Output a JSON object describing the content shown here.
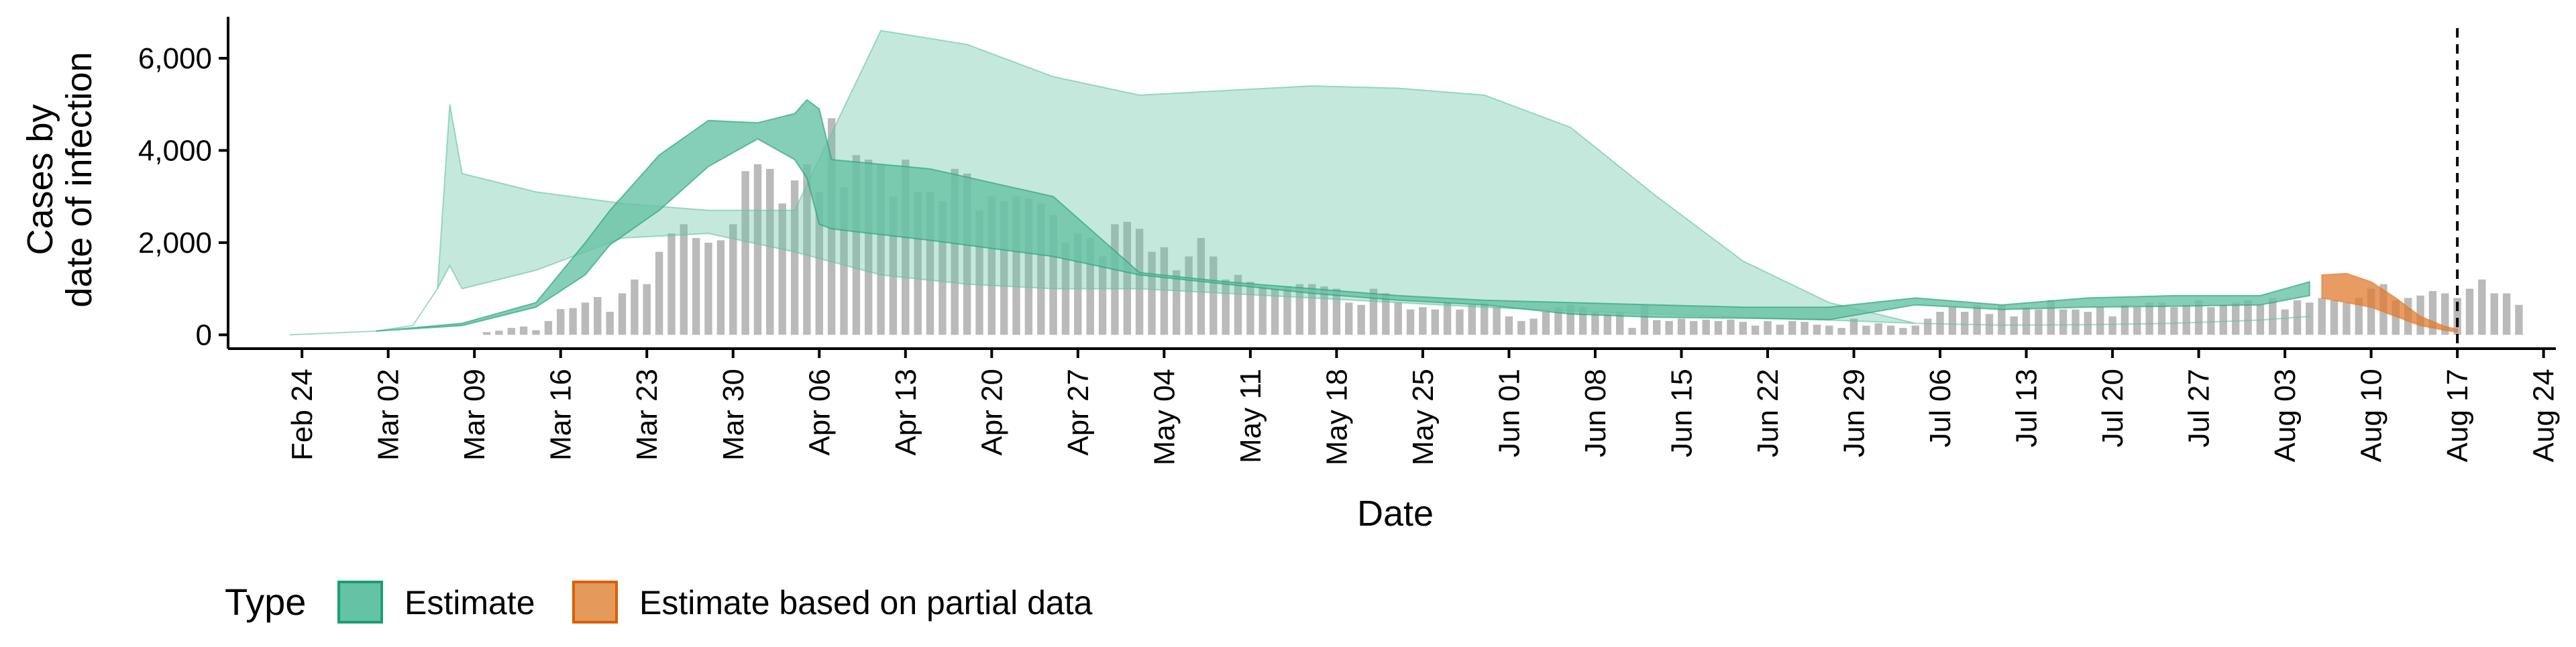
{
  "chart_data": {
    "type": "area",
    "xlabel": "Date",
    "ylabel_lines": [
      "Cases by",
      "date of infection"
    ],
    "x_domain": [
      "2020-02-18",
      "2020-08-25"
    ],
    "ylim": [
      -300,
      6900
    ],
    "y_ticks": [
      0,
      2000,
      4000,
      6000
    ],
    "y_tick_labels": [
      "0",
      "2,000",
      "4,000",
      "6,000"
    ],
    "x_ticks": [
      "2020-02-24",
      "2020-03-02",
      "2020-03-09",
      "2020-03-16",
      "2020-03-23",
      "2020-03-30",
      "2020-04-06",
      "2020-04-13",
      "2020-04-20",
      "2020-04-27",
      "2020-05-04",
      "2020-05-11",
      "2020-05-18",
      "2020-05-25",
      "2020-06-01",
      "2020-06-08",
      "2020-06-15",
      "2020-06-22",
      "2020-06-29",
      "2020-07-06",
      "2020-07-13",
      "2020-07-20",
      "2020-07-27",
      "2020-08-03",
      "2020-08-10",
      "2020-08-17",
      "2020-08-24"
    ],
    "x_tick_labels": [
      "Feb 24",
      "Mar 02",
      "Mar 09",
      "Mar 16",
      "Mar 23",
      "Mar 30",
      "Apr 06",
      "Apr 13",
      "Apr 20",
      "Apr 27",
      "May 04",
      "May 11",
      "May 18",
      "May 25",
      "Jun 01",
      "Jun 08",
      "Jun 15",
      "Jun 22",
      "Jun 29",
      "Jul 06",
      "Jul 13",
      "Jul 20",
      "Jul 27",
      "Aug 03",
      "Aug 10",
      "Aug 17",
      "Aug 24"
    ],
    "reference_line": "2020-08-17",
    "grid": false,
    "legend": {
      "title": "Type",
      "placement": "bottom-left",
      "entries": [
        {
          "label": "Estimate",
          "fill": "#66c2a5",
          "stroke": "#1b9e77"
        },
        {
          "label": "Estimate based on partial data",
          "fill": "#e59a5c",
          "stroke": "#d95f02"
        }
      ]
    },
    "colors": {
      "estimate_fill": "#66c2a5",
      "estimate_outline": "#1b9e77",
      "partial_fill": "#e07b2f",
      "bars": "#b3b3b3",
      "axis": "#000000"
    },
    "reported_cases": {
      "start_date": "2020-03-10",
      "values": [
        60,
        90,
        150,
        180,
        100,
        300,
        560,
        580,
        700,
        820,
        500,
        900,
        1200,
        1100,
        1800,
        2200,
        2400,
        2100,
        2000,
        2050,
        2400,
        3550,
        3700,
        3600,
        2850,
        3350,
        3700,
        3100,
        4700,
        3200,
        3900,
        3800,
        3700,
        3000,
        3800,
        3100,
        3100,
        2900,
        3600,
        3500,
        2700,
        3000,
        2900,
        3000,
        2950,
        2850,
        2600,
        2000,
        2200,
        2100,
        1700,
        2400,
        2450,
        2300,
        1800,
        1900,
        1400,
        1700,
        2100,
        1700,
        1200,
        1300,
        1150,
        1050,
        1000,
        1050,
        1100,
        1100,
        1050,
        1000,
        700,
        650,
        1000,
        900,
        700,
        550,
        600,
        550,
        700,
        550,
        650,
        700,
        600,
        400,
        300,
        350,
        500,
        600,
        650,
        600,
        500,
        450,
        500,
        150,
        650,
        320,
        300,
        350,
        300,
        330,
        300,
        330,
        280,
        200,
        300,
        220,
        300,
        280,
        220,
        200,
        150,
        350,
        200,
        250,
        200,
        150,
        200,
        350,
        500,
        600,
        500,
        650,
        450,
        650,
        400,
        600,
        550,
        750,
        550,
        550,
        500,
        600,
        400,
        650,
        600,
        700,
        700,
        600,
        650,
        750,
        600,
        650,
        700,
        750,
        650,
        800,
        550,
        750,
        700,
        800,
        750,
        700,
        800,
        1000,
        1100,
        750,
        800,
        850,
        950,
        900,
        800,
        1000,
        1200,
        900,
        900,
        650
      ]
    },
    "series": [
      {
        "name": "Estimate",
        "band": "outer",
        "x": [
          "2020-02-23",
          "2020-03-01",
          "2020-03-04",
          "2020-03-06",
          "2020-03-07",
          "2020-03-08",
          "2020-03-14",
          "2020-03-21",
          "2020-03-28",
          "2020-04-04",
          "2020-04-11",
          "2020-04-18",
          "2020-04-25",
          "2020-05-02",
          "2020-05-09",
          "2020-05-16",
          "2020-05-23",
          "2020-05-30",
          "2020-06-06",
          "2020-06-13",
          "2020-06-20",
          "2020-06-27",
          "2020-07-04",
          "2020-07-11",
          "2020-07-18",
          "2020-07-25",
          "2020-08-01",
          "2020-08-05"
        ],
        "upper": [
          0,
          80,
          200,
          1000,
          5000,
          3500,
          3100,
          2850,
          2700,
          2700,
          6600,
          6300,
          5600,
          5200,
          5300,
          5400,
          5350,
          5200,
          4500,
          3000,
          1600,
          700,
          250,
          210,
          220,
          250,
          320,
          400
        ],
        "lower": [
          0,
          80,
          200,
          1000,
          1500,
          1000,
          1400,
          2100,
          2200,
          1800,
          1300,
          1100,
          1000,
          1000,
          900,
          800,
          700,
          600,
          520,
          450,
          380,
          320,
          250,
          210,
          220,
          250,
          320,
          400
        ]
      },
      {
        "name": "Estimate",
        "band": "inner",
        "x": [
          "2020-03-01",
          "2020-03-08",
          "2020-03-14",
          "2020-03-18",
          "2020-03-20",
          "2020-03-24",
          "2020-03-28",
          "2020-04-01",
          "2020-04-04",
          "2020-04-05",
          "2020-04-06",
          "2020-04-07",
          "2020-04-15",
          "2020-04-25",
          "2020-05-02",
          "2020-05-09",
          "2020-05-16",
          "2020-05-23",
          "2020-05-30",
          "2020-06-06",
          "2020-06-13",
          "2020-06-20",
          "2020-06-27",
          "2020-07-04",
          "2020-07-11",
          "2020-07-18",
          "2020-07-25",
          "2020-08-01",
          "2020-08-05"
        ],
        "upper": [
          80,
          250,
          700,
          2000,
          2700,
          3900,
          4650,
          4600,
          4800,
          5100,
          4900,
          3800,
          3600,
          3000,
          1350,
          1150,
          1000,
          850,
          750,
          700,
          650,
          600,
          600,
          800,
          650,
          800,
          850,
          850,
          1150
        ],
        "lower": [
          80,
          200,
          600,
          1300,
          1950,
          2700,
          3650,
          4250,
          3800,
          3400,
          2400,
          2300,
          2050,
          1700,
          1300,
          1100,
          900,
          750,
          650,
          450,
          380,
          360,
          330,
          650,
          550,
          600,
          620,
          650,
          850
        ]
      },
      {
        "name": "Estimate based on partial data",
        "band": "partial",
        "x": [
          "2020-08-06",
          "2020-08-08",
          "2020-08-10",
          "2020-08-12",
          "2020-08-14",
          "2020-08-16",
          "2020-08-17"
        ],
        "upper": [
          1300,
          1330,
          1150,
          800,
          400,
          180,
          120
        ],
        "lower": [
          800,
          700,
          600,
          400,
          200,
          100,
          60
        ]
      }
    ]
  }
}
